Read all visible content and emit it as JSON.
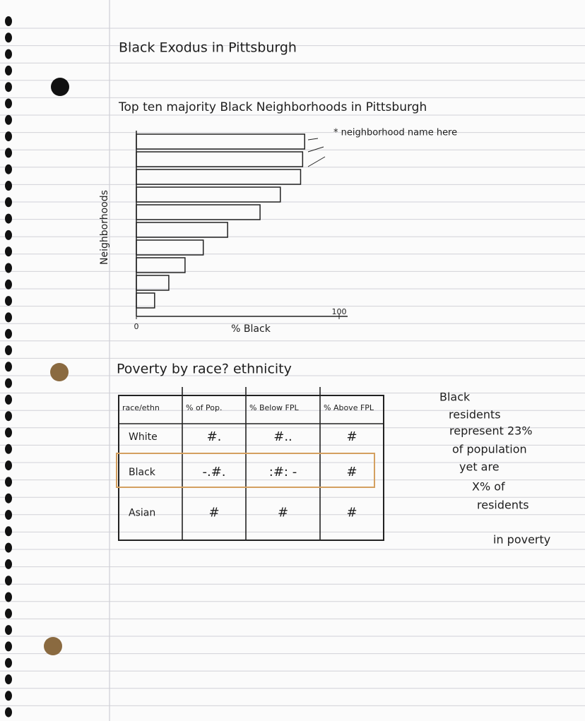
{
  "title": "Black Exodus in Pittsburgh",
  "chart_data": {
    "type": "bar",
    "orientation": "horizontal",
    "title": "Top ten majority Black Neighborhoods in Pittsburgh",
    "annotation": "* neighborhood name here",
    "categories": [
      null,
      null,
      null,
      null,
      null,
      null,
      null,
      null,
      null,
      null
    ],
    "values": [
      83,
      82,
      81,
      71,
      61,
      45,
      33,
      24,
      16,
      9
    ],
    "color": "#222",
    "xlim": [
      0,
      100
    ],
    "xticks": [
      0,
      100
    ],
    "xlabel": "% Black",
    "ylabel": "Neighborhoods"
  },
  "section_title": "Poverty by race? ethnicity",
  "table": {
    "header": [
      "race/ethn",
      "% of Pop.",
      "% Below FPL",
      "% Above FPL"
    ],
    "rows": [
      [
        "White",
        "#.",
        "#..",
        "#"
      ],
      [
        "Black",
        "-.#.",
        ":#: -",
        "#"
      ],
      [
        "Asian",
        "#",
        "#",
        "#"
      ]
    ],
    "highlighted_row": 1
  },
  "note": [
    "Black",
    "residents",
    "represent 23%",
    "of population",
    "yet are",
    "X% of",
    "residents",
    "in poverty"
  ]
}
